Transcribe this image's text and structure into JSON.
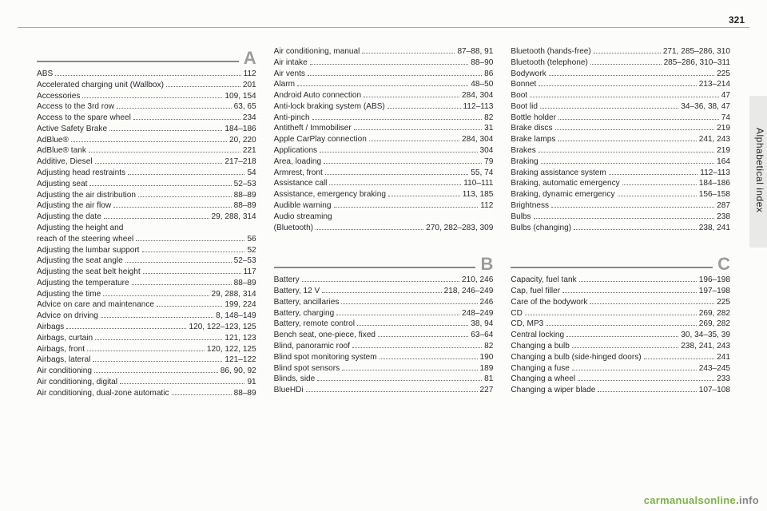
{
  "page_number": "321",
  "side_label": "Alphabetical index",
  "watermark_green": "carmanualsonline",
  "watermark_grey": ".info",
  "columns": [
    {
      "sections": [
        {
          "letter": "A",
          "entries": [
            {
              "label": "ABS",
              "pages": "112"
            },
            {
              "label": "Accelerated charging unit (Wallbox)",
              "pages": "201"
            },
            {
              "label": "Accessories",
              "pages": "109, 154"
            },
            {
              "label": "Access to the 3rd row",
              "pages": "63, 65"
            },
            {
              "label": "Access to the spare wheel",
              "pages": "234"
            },
            {
              "label": "Active Safety Brake",
              "pages": "184–186"
            },
            {
              "label": "AdBlue®",
              "pages": "20, 220"
            },
            {
              "label": "AdBlue® tank",
              "pages": "221"
            },
            {
              "label": "Additive, Diesel",
              "pages": "217–218"
            },
            {
              "label": "Adjusting head restraints",
              "pages": "54"
            },
            {
              "label": "Adjusting seat",
              "pages": "52–53"
            },
            {
              "label": "Adjusting the air distribution",
              "pages": "88–89"
            },
            {
              "label": "Adjusting the air flow",
              "pages": "88–89"
            },
            {
              "label": "Adjusting the date",
              "pages": "29, 288, 314"
            },
            {
              "label": "Adjusting the height and",
              "cont": true
            },
            {
              "label": "reach of the steering wheel",
              "pages": "56"
            },
            {
              "label": "Adjusting the lumbar support",
              "pages": "52"
            },
            {
              "label": "Adjusting the seat angle",
              "pages": "52–53"
            },
            {
              "label": "Adjusting the seat belt height",
              "pages": "117"
            },
            {
              "label": "Adjusting the temperature",
              "pages": "88–89"
            },
            {
              "label": "Adjusting the time",
              "pages": "29, 288, 314"
            },
            {
              "label": "Advice on care and maintenance",
              "pages": "199, 224"
            },
            {
              "label": "Advice on driving",
              "pages": "8, 148–149"
            },
            {
              "label": "Airbags",
              "pages": "120, 122–123, 125"
            },
            {
              "label": "Airbags, curtain",
              "pages": "121, 123"
            },
            {
              "label": "Airbags, front",
              "pages": "120, 122, 125"
            },
            {
              "label": "Airbags, lateral",
              "pages": "121–122"
            },
            {
              "label": "Air conditioning",
              "pages": "86, 90, 92"
            },
            {
              "label": "Air conditioning, digital",
              "pages": "91"
            },
            {
              "label": "Air conditioning, dual-zone automatic",
              "pages": "88–89"
            }
          ]
        }
      ]
    },
    {
      "sections": [
        {
          "entries": [
            {
              "label": "Air conditioning, manual",
              "pages": "87–88, 91"
            },
            {
              "label": "Air intake",
              "pages": "88–90"
            },
            {
              "label": "Air vents",
              "pages": "86"
            },
            {
              "label": "Alarm",
              "pages": "48–50"
            },
            {
              "label": "Android Auto connection",
              "pages": "284, 304"
            },
            {
              "label": "Anti-lock braking system (ABS)",
              "pages": "112–113"
            },
            {
              "label": "Anti-pinch",
              "pages": "82"
            },
            {
              "label": "Antitheft / Immobiliser",
              "pages": "31"
            },
            {
              "label": "Apple CarPlay connection",
              "pages": "284, 304"
            },
            {
              "label": "Applications",
              "pages": "304"
            },
            {
              "label": "Area, loading",
              "pages": "79"
            },
            {
              "label": "Armrest, front",
              "pages": "55, 74"
            },
            {
              "label": "Assistance call",
              "pages": "110–111"
            },
            {
              "label": "Assistance, emergency braking",
              "pages": "113, 185"
            },
            {
              "label": "Audible warning",
              "pages": "112"
            },
            {
              "label": "Audio streaming",
              "cont": true
            },
            {
              "label": "(Bluetooth)",
              "pages": "270, 282–283, 309"
            }
          ]
        },
        {
          "letter": "B",
          "entries": [
            {
              "label": "Battery",
              "pages": "210, 246"
            },
            {
              "label": "Battery, 12 V",
              "pages": "218, 246–249"
            },
            {
              "label": "Battery, ancillaries",
              "pages": "246"
            },
            {
              "label": "Battery, charging",
              "pages": "248–249"
            },
            {
              "label": "Battery, remote control",
              "pages": "38, 94"
            },
            {
              "label": "Bench seat, one-piece, fixed",
              "pages": "63–64"
            },
            {
              "label": "Blind, panoramic roof",
              "pages": "82"
            },
            {
              "label": "Blind spot monitoring system",
              "pages": "190"
            },
            {
              "label": "Blind spot sensors",
              "pages": "189"
            },
            {
              "label": "Blinds, side",
              "pages": "81"
            },
            {
              "label": "BlueHDi",
              "pages": "227"
            }
          ]
        }
      ]
    },
    {
      "sections": [
        {
          "entries": [
            {
              "label": "Bluetooth (hands-free)",
              "pages": "271, 285–286, 310"
            },
            {
              "label": "Bluetooth (telephone)",
              "pages": "285–286, 310–311"
            },
            {
              "label": "Bodywork",
              "pages": "225"
            },
            {
              "label": "Bonnet",
              "pages": "213–214"
            },
            {
              "label": "Boot",
              "pages": "47"
            },
            {
              "label": "Boot lid",
              "pages": "34–36, 38, 47"
            },
            {
              "label": "Bottle holder",
              "pages": "74"
            },
            {
              "label": "Brake discs",
              "pages": "219"
            },
            {
              "label": "Brake lamps",
              "pages": "241, 243"
            },
            {
              "label": "Brakes",
              "pages": "219"
            },
            {
              "label": "Braking",
              "pages": "164"
            },
            {
              "label": "Braking assistance system",
              "pages": "112–113"
            },
            {
              "label": "Braking, automatic emergency",
              "pages": "184–186"
            },
            {
              "label": "Braking, dynamic emergency",
              "pages": "156–158"
            },
            {
              "label": "Brightness",
              "pages": "287"
            },
            {
              "label": "Bulbs",
              "pages": "238"
            },
            {
              "label": "Bulbs (changing)",
              "pages": "238, 241"
            }
          ]
        },
        {
          "letter": "C",
          "entries": [
            {
              "label": "Capacity, fuel tank",
              "pages": "196–198"
            },
            {
              "label": "Cap, fuel filler",
              "pages": "197–198"
            },
            {
              "label": "Care of the bodywork",
              "pages": "225"
            },
            {
              "label": "CD",
              "pages": "269, 282"
            },
            {
              "label": "CD, MP3",
              "pages": "269, 282"
            },
            {
              "label": "Central locking",
              "pages": "30, 34–35, 39"
            },
            {
              "label": "Changing a bulb",
              "pages": "238, 241, 243"
            },
            {
              "label": "Changing a bulb (side-hinged doors)",
              "pages": "241"
            },
            {
              "label": "Changing a fuse",
              "pages": "243–245"
            },
            {
              "label": "Changing a wheel",
              "pages": "233"
            },
            {
              "label": "Changing a wiper blade",
              "pages": "107–108"
            }
          ]
        }
      ]
    }
  ]
}
